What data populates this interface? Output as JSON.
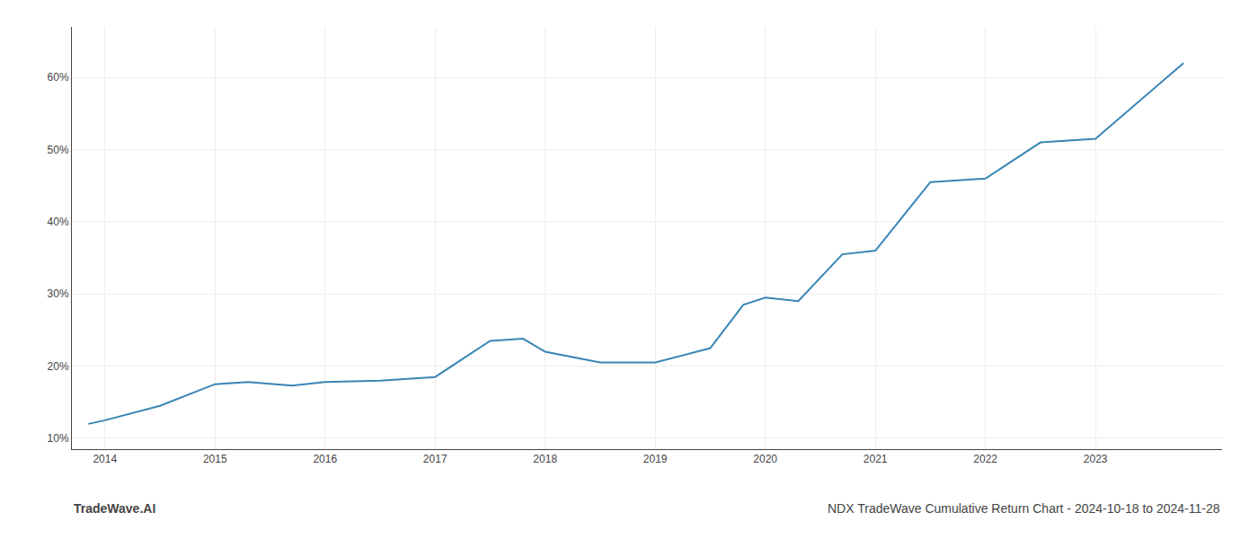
{
  "chart_data": {
    "type": "line",
    "x": [
      2013.85,
      2014.0,
      2014.5,
      2015.0,
      2015.3,
      2015.7,
      2016.0,
      2016.5,
      2017.0,
      2017.5,
      2017.8,
      2018.0,
      2018.5,
      2019.0,
      2019.5,
      2019.8,
      2020.0,
      2020.3,
      2020.7,
      2021.0,
      2021.5,
      2022.0,
      2022.5,
      2023.0,
      2023.8
    ],
    "values": [
      12.0,
      12.5,
      14.5,
      17.5,
      17.8,
      17.3,
      17.8,
      18.0,
      18.5,
      23.5,
      23.8,
      22.0,
      20.5,
      20.5,
      22.5,
      28.5,
      29.5,
      29.0,
      35.5,
      36.0,
      45.5,
      46.0,
      51.0,
      51.5,
      62.0
    ],
    "color": "#3a85b5",
    "xlim": [
      2013.7,
      2024.15
    ],
    "xticks": [
      2014,
      2015,
      2016,
      2017,
      2018,
      2019,
      2020,
      2021,
      2022,
      2023
    ],
    "ylim": [
      8.5,
      67
    ],
    "yticks": [
      {
        "value": 10,
        "label": "10%"
      },
      {
        "value": 20,
        "label": "20%"
      },
      {
        "value": 30,
        "label": "30%"
      },
      {
        "value": 40,
        "label": "40%"
      },
      {
        "value": 50,
        "label": "50%"
      },
      {
        "value": 60,
        "label": "60%"
      }
    ],
    "grid": true,
    "annotations": [
      "TradeWave.AI",
      "NDX TradeWave Cumulative Return Chart - 2024-10-18 to 2024-11-28"
    ]
  }
}
